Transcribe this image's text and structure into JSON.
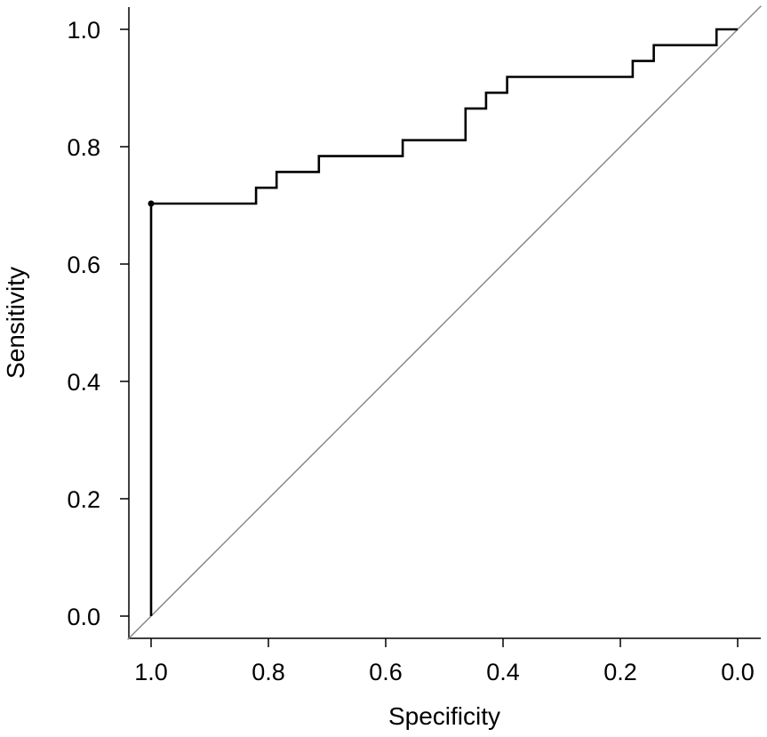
{
  "chart_data": {
    "type": "line",
    "title": "",
    "xlabel": "Specificity",
    "ylabel": "Sensitivity",
    "xlim": [
      1.0,
      0.0
    ],
    "ylim": [
      0.0,
      1.0
    ],
    "x_reversed": true,
    "grid": false,
    "legend": "none",
    "x_ticks": [
      {
        "value": 1.0,
        "label": "1.0"
      },
      {
        "value": 0.8,
        "label": "0.8"
      },
      {
        "value": 0.6,
        "label": "0.6"
      },
      {
        "value": 0.4,
        "label": "0.4"
      },
      {
        "value": 0.2,
        "label": "0.2"
      },
      {
        "value": 0.0,
        "label": "0.0"
      }
    ],
    "y_ticks": [
      {
        "value": 0.0,
        "label": "0.0"
      },
      {
        "value": 0.2,
        "label": "0.2"
      },
      {
        "value": 0.4,
        "label": "0.4"
      },
      {
        "value": 0.6,
        "label": "0.6"
      },
      {
        "value": 0.8,
        "label": "0.8"
      },
      {
        "value": 1.0,
        "label": "1.0"
      }
    ],
    "series": [
      {
        "color": "#000000",
        "x": [
          1.0,
          1.0,
          0.821,
          0.821,
          0.786,
          0.786,
          0.714,
          0.714,
          0.571,
          0.571,
          0.464,
          0.464,
          0.429,
          0.429,
          0.393,
          0.393,
          0.179,
          0.179,
          0.143,
          0.143,
          0.036,
          0.036,
          0.0
        ],
        "y": [
          0.0,
          0.703,
          0.703,
          0.73,
          0.73,
          0.757,
          0.757,
          0.784,
          0.784,
          0.811,
          0.811,
          0.865,
          0.865,
          0.892,
          0.892,
          0.919,
          0.919,
          0.946,
          0.946,
          0.973,
          0.973,
          1.0,
          1.0
        ]
      }
    ],
    "reference_line": {
      "color": "#888888",
      "from": [
        1.0,
        0.0
      ],
      "to": [
        0.0,
        1.0
      ]
    },
    "marked_point": {
      "x": 1.0,
      "y": 0.703
    }
  }
}
